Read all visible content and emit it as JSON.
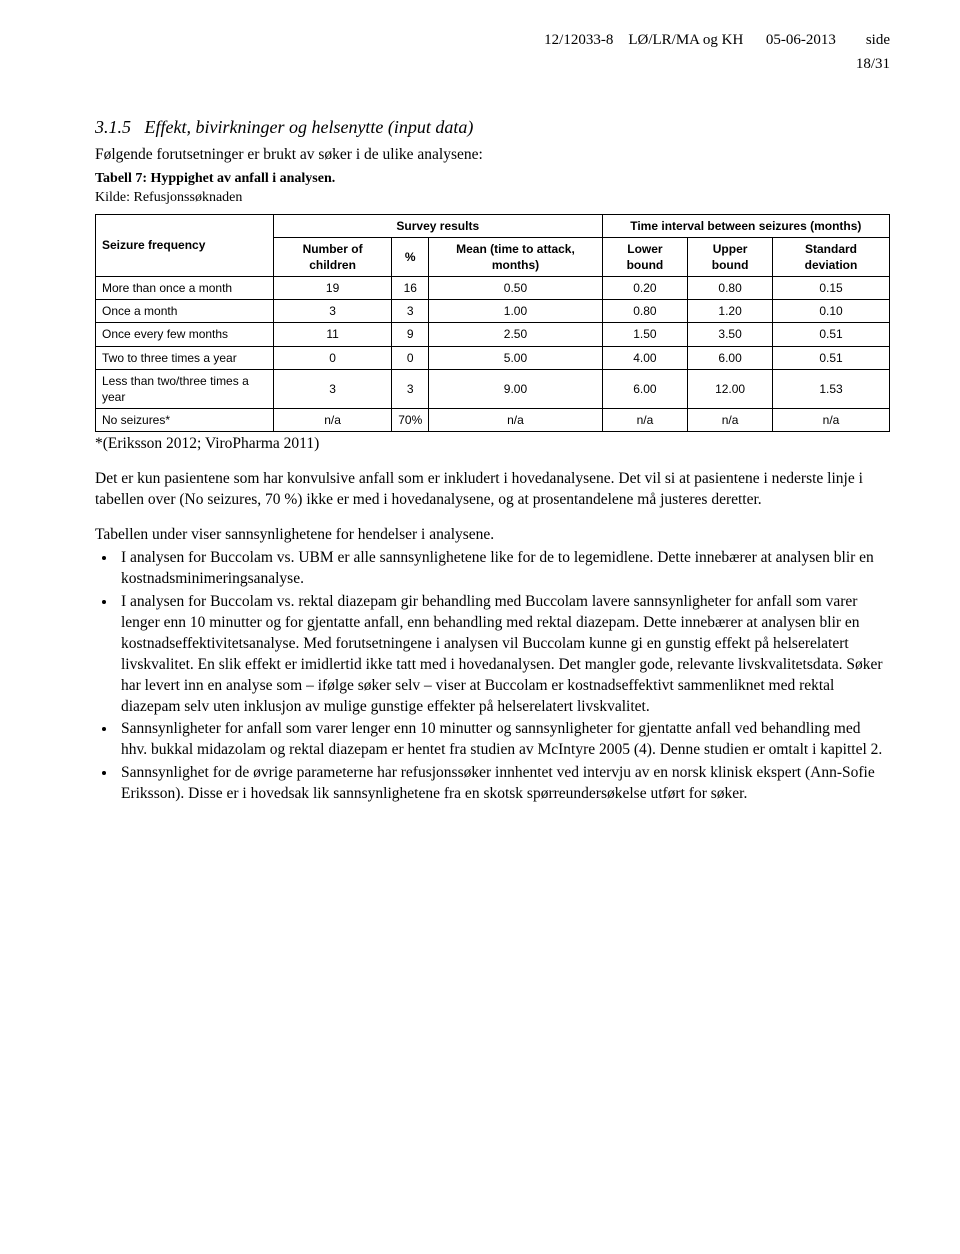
{
  "header": {
    "line": "12/12033-8    LØ/LR/MA og KH      05-06-2013        side",
    "page": "18/31"
  },
  "section": {
    "number": "3.1.5",
    "title": "Effekt, bivirkninger og helsenytte (input data)",
    "intro": "Følgende forutsetninger er brukt av søker i de ulike analysene:"
  },
  "table": {
    "caption": "Tabell 7: Hyppighet av anfall i analysen.",
    "subcaption": "Kilde: Refusjonssøknaden",
    "headers": {
      "freq": "Seizure frequency",
      "survey": "Survey results",
      "interval": "Time interval between seizures (months)",
      "num": "Number of children",
      "pct": "%",
      "mean": "Mean (time to attack, months)",
      "lower": "Lower bound",
      "upper": "Upper bound",
      "std": "Standard deviation"
    },
    "rows": [
      {
        "label": "More than once a month",
        "num": "19",
        "pct": "16",
        "mean": "0.50",
        "lower": "0.20",
        "upper": "0.80",
        "std": "0.15"
      },
      {
        "label": "Once a month",
        "num": "3",
        "pct": "3",
        "mean": "1.00",
        "lower": "0.80",
        "upper": "1.20",
        "std": "0.10"
      },
      {
        "label": "Once every few months",
        "num": "11",
        "pct": "9",
        "mean": "2.50",
        "lower": "1.50",
        "upper": "3.50",
        "std": "0.51"
      },
      {
        "label": "Two to three times a year",
        "num": "0",
        "pct": "0",
        "mean": "5.00",
        "lower": "4.00",
        "upper": "6.00",
        "std": "0.51"
      },
      {
        "label": "Less than two/three times a year",
        "num": "3",
        "pct": "3",
        "mean": "9.00",
        "lower": "6.00",
        "upper": "12.00",
        "std": "1.53"
      },
      {
        "label": "No seizures*",
        "num": "n/a",
        "pct": "70%",
        "mean": "n/a",
        "lower": "n/a",
        "upper": "n/a",
        "std": "n/a"
      }
    ],
    "footnote": "*(Eriksson 2012; ViroPharma 2011)"
  },
  "paragraphs": {
    "p1": "Det er kun pasientene som har konvulsive anfall som er inkludert i hovedanalysene. Det vil si at pasientene i nederste linje i tabellen over (No seizures, 70 %) ikke er med i hovedanalysene, og at prosentandelene må justeres deretter.",
    "p2": "Tabellen under viser sannsynlighetene for hendelser i analysene."
  },
  "bullets": {
    "b1": "I analysen for Buccolam vs. UBM er alle sannsynlighetene like for de to legemidlene. Dette innebærer at analysen blir en kostnadsminimeringsanalyse.",
    "b2": "I analysen for Buccolam vs. rektal diazepam gir behandling med Buccolam lavere sannsynligheter for anfall som varer lenger enn 10 minutter og for gjentatte anfall, enn behandling med rektal diazepam. Dette innebærer at analysen blir en kostnadseffektivitetsanalyse. Med forutsetningene i analysen vil Buccolam kunne gi en gunstig effekt på helserelatert livskvalitet. En slik effekt er imidlertid ikke tatt med i hovedanalysen. Det mangler gode, relevante livskvalitetsdata. Søker har levert inn en analyse som – ifølge søker selv – viser at Buccolam er kostnadseffektivt sammenliknet med rektal diazepam selv uten inklusjon av mulige gunstige effekter på helserelatert livskvalitet.",
    "b3": "Sannsynligheter for anfall som varer lenger enn 10 minutter og sannsynligheter for gjentatte anfall ved behandling med hhv. bukkal midazolam og rektal diazepam er hentet fra studien av McIntyre 2005 (4). Denne studien er omtalt i kapittel 2.",
    "b4": "Sannsynlighet for de øvrige parameterne har refusjonssøker innhentet ved intervju av en norsk klinisk ekspert (Ann-Sofie Eriksson). Disse er i hovedsak lik sannsynlighetene fra en skotsk spørreundersøkelse utført for søker."
  }
}
